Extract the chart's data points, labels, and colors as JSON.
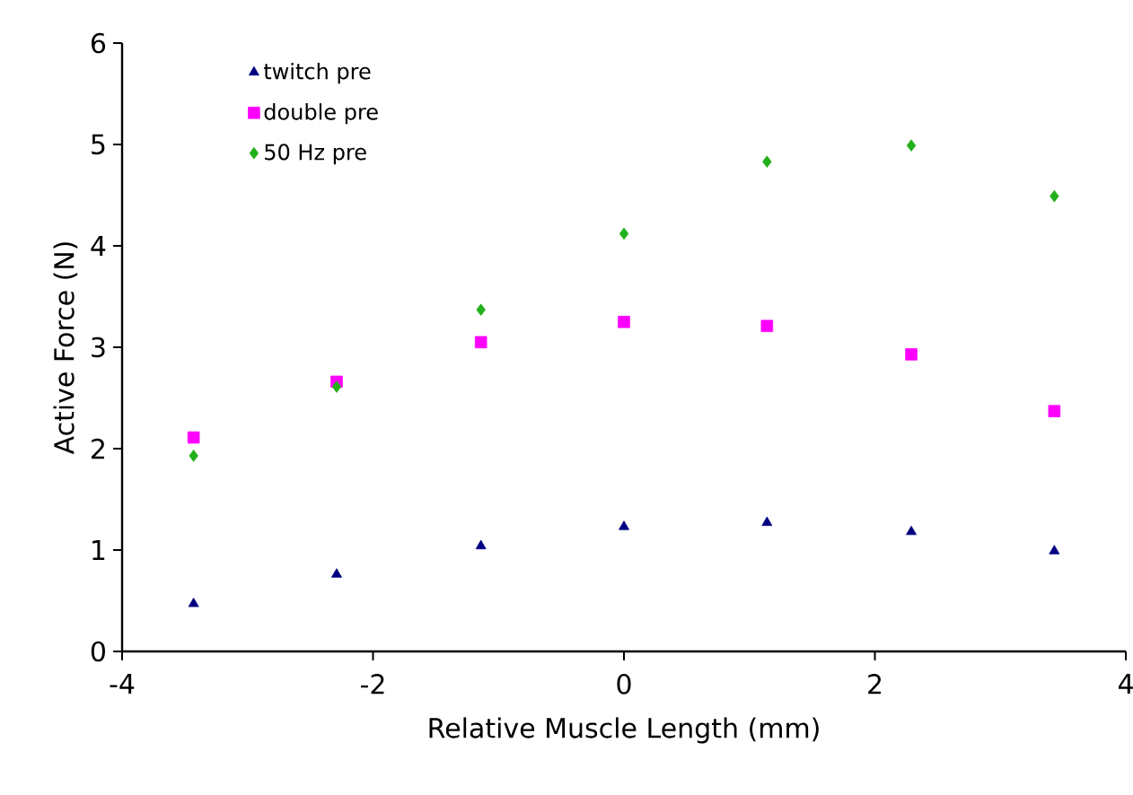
{
  "chart_data": {
    "type": "scatter",
    "xlabel": "Relative Muscle Length (mm)",
    "ylabel": "Active Force (N)",
    "x": [
      -3.43,
      -2.29,
      -1.14,
      0,
      1.14,
      2.29,
      3.43
    ],
    "series": [
      {
        "name": "twitch pre",
        "color": "#000080",
        "marker": "triangle",
        "values": [
          0.47,
          0.76,
          1.04,
          1.23,
          1.27,
          1.18,
          0.99
        ]
      },
      {
        "name": "double pre",
        "color": "#ff00ff",
        "marker": "square",
        "values": [
          2.11,
          2.66,
          3.05,
          3.25,
          3.21,
          2.93,
          2.37
        ]
      },
      {
        "name": "50 Hz pre",
        "color": "#22b01a",
        "marker": "diamond",
        "values": [
          1.93,
          2.61,
          3.37,
          4.12,
          4.83,
          4.99,
          4.49
        ]
      }
    ],
    "xlim": [
      -4,
      4
    ],
    "ylim": [
      0,
      6
    ],
    "xticks": [
      -4,
      -2,
      0,
      2,
      4
    ],
    "yticks": [
      0,
      1,
      2,
      3,
      4,
      5,
      6
    ],
    "legend": "top left",
    "grid": false
  }
}
